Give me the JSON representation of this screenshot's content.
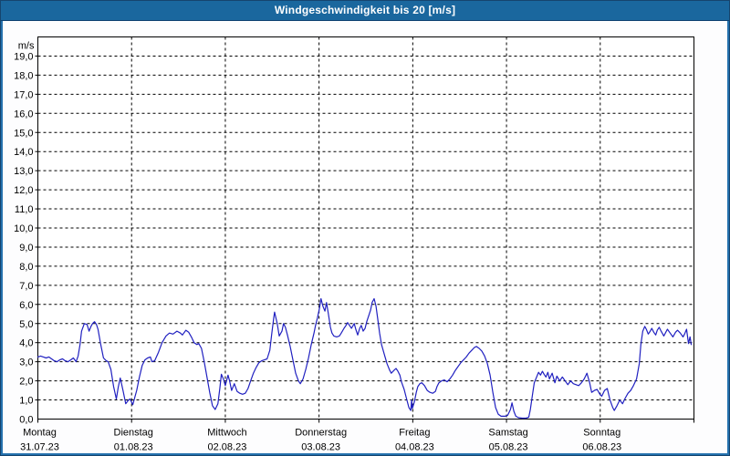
{
  "window": {
    "title": "Windgeschwindigkeit bis 20 [m/s]"
  },
  "colors": {
    "titlebar_bg": "#1a679e",
    "titlebar_text": "#ffffff",
    "frame": "#2471ad",
    "plot_bg": "#ffffff",
    "grid": "#000000",
    "axis": "#000000",
    "tick_text": "#000000",
    "line": "#2020c0"
  },
  "chart_data": {
    "type": "line",
    "title": "Windgeschwindigkeit bis 20 [m/s]",
    "y_unit_label": "m/s",
    "y_zero_label": "0,0",
    "ylim": [
      0,
      20
    ],
    "y_tick_step": 1,
    "y_tick_format": "comma_one_decimal",
    "grid": "dashed",
    "legend": "none",
    "x_axis": {
      "range_hours": [
        0,
        168
      ],
      "days": [
        {
          "name": "Montag",
          "date": "31.07.23"
        },
        {
          "name": "Dienstag",
          "date": "01.08.23"
        },
        {
          "name": "Mittwoch",
          "date": "02.08.23"
        },
        {
          "name": "Donnerstag",
          "date": "03.08.23"
        },
        {
          "name": "Freitag",
          "date": "04.08.23"
        },
        {
          "name": "Samstag",
          "date": "05.08.23"
        },
        {
          "name": "Sonntag",
          "date": "06.08.23"
        }
      ]
    },
    "series": [
      {
        "name": "Windgeschwindigkeit",
        "unit": "m/s",
        "color": "#2020c0",
        "points_hour_value": [
          [
            0,
            3.25
          ],
          [
            0.7,
            3.3
          ],
          [
            1.4,
            3.25
          ],
          [
            2.1,
            3.2
          ],
          [
            2.8,
            3.25
          ],
          [
            3.5,
            3.15
          ],
          [
            4.2,
            3.05
          ],
          [
            4.9,
            3.0
          ],
          [
            5.6,
            3.1
          ],
          [
            6.3,
            3.15
          ],
          [
            7.0,
            3.05
          ],
          [
            7.7,
            3.0
          ],
          [
            8.4,
            3.1
          ],
          [
            9.1,
            3.2
          ],
          [
            9.8,
            3.0
          ],
          [
            10.3,
            3.3
          ],
          [
            10.8,
            3.9
          ],
          [
            11.2,
            4.6
          ],
          [
            11.9,
            5.0
          ],
          [
            12.6,
            4.95
          ],
          [
            13.1,
            4.6
          ],
          [
            13.6,
            4.85
          ],
          [
            14.0,
            5.0
          ],
          [
            14.5,
            5.1
          ],
          [
            15.0,
            4.95
          ],
          [
            15.4,
            4.7
          ],
          [
            16.1,
            3.9
          ],
          [
            16.8,
            3.2
          ],
          [
            17.5,
            3.05
          ],
          [
            18.0,
            3.0
          ],
          [
            18.7,
            2.6
          ],
          [
            19.4,
            1.7
          ],
          [
            20.1,
            1.05
          ],
          [
            20.6,
            1.7
          ],
          [
            21.1,
            2.15
          ],
          [
            21.8,
            1.5
          ],
          [
            22.5,
            0.8
          ],
          [
            23.2,
            1.0
          ],
          [
            23.6,
            1.05
          ],
          [
            24.3,
            0.75
          ],
          [
            25.3,
            1.5
          ],
          [
            26.0,
            2.2
          ],
          [
            26.7,
            2.8
          ],
          [
            27.4,
            3.1
          ],
          [
            28.1,
            3.2
          ],
          [
            28.8,
            3.25
          ],
          [
            29.2,
            3.0
          ],
          [
            29.9,
            3.05
          ],
          [
            30.9,
            3.5
          ],
          [
            31.8,
            4.0
          ],
          [
            32.8,
            4.35
          ],
          [
            33.7,
            4.5
          ],
          [
            34.6,
            4.45
          ],
          [
            35.6,
            4.6
          ],
          [
            36.5,
            4.5
          ],
          [
            37.0,
            4.4
          ],
          [
            37.9,
            4.65
          ],
          [
            38.6,
            4.55
          ],
          [
            39.3,
            4.3
          ],
          [
            40.0,
            4.0
          ],
          [
            40.7,
            3.9
          ],
          [
            41.2,
            3.95
          ],
          [
            41.9,
            3.7
          ],
          [
            42.6,
            3.0
          ],
          [
            43.3,
            2.2
          ],
          [
            44.0,
            1.4
          ],
          [
            44.7,
            0.7
          ],
          [
            45.4,
            0.5
          ],
          [
            46.1,
            0.8
          ],
          [
            46.6,
            1.6
          ],
          [
            47.0,
            2.35
          ],
          [
            47.5,
            2.1
          ],
          [
            48.0,
            1.75
          ],
          [
            48.7,
            2.3
          ],
          [
            49.1,
            2.0
          ],
          [
            49.6,
            1.5
          ],
          [
            50.3,
            1.85
          ],
          [
            51.0,
            1.45
          ],
          [
            51.7,
            1.35
          ],
          [
            52.4,
            1.3
          ],
          [
            53.1,
            1.35
          ],
          [
            53.8,
            1.6
          ],
          [
            54.5,
            2.0
          ],
          [
            55.2,
            2.4
          ],
          [
            55.9,
            2.7
          ],
          [
            56.6,
            2.95
          ],
          [
            57.3,
            3.05
          ],
          [
            58.0,
            3.1
          ],
          [
            58.7,
            3.15
          ],
          [
            59.4,
            3.6
          ],
          [
            59.9,
            4.5
          ],
          [
            60.4,
            5.3
          ],
          [
            60.6,
            5.6
          ],
          [
            61.3,
            5.0
          ],
          [
            61.8,
            4.35
          ],
          [
            62.5,
            4.6
          ],
          [
            62.9,
            5.0
          ],
          [
            63.4,
            4.8
          ],
          [
            63.9,
            4.4
          ],
          [
            64.6,
            3.8
          ],
          [
            65.3,
            3.1
          ],
          [
            66.0,
            2.4
          ],
          [
            66.7,
            2.0
          ],
          [
            67.2,
            1.85
          ],
          [
            67.9,
            2.1
          ],
          [
            68.6,
            2.6
          ],
          [
            69.3,
            3.2
          ],
          [
            70.0,
            3.9
          ],
          [
            70.7,
            4.5
          ],
          [
            71.1,
            4.9
          ],
          [
            71.6,
            5.3
          ],
          [
            72.1,
            5.8
          ],
          [
            72.5,
            6.3
          ],
          [
            73.0,
            5.9
          ],
          [
            73.5,
            5.65
          ],
          [
            73.9,
            6.1
          ],
          [
            74.4,
            5.5
          ],
          [
            74.9,
            4.8
          ],
          [
            75.3,
            4.5
          ],
          [
            75.8,
            4.35
          ],
          [
            76.5,
            4.3
          ],
          [
            77.2,
            4.35
          ],
          [
            77.7,
            4.5
          ],
          [
            78.4,
            4.75
          ],
          [
            78.9,
            4.9
          ],
          [
            79.3,
            5.05
          ],
          [
            79.8,
            4.9
          ],
          [
            80.3,
            4.75
          ],
          [
            81.0,
            5.0
          ],
          [
            81.4,
            4.7
          ],
          [
            81.9,
            4.4
          ],
          [
            82.4,
            4.75
          ],
          [
            82.8,
            4.9
          ],
          [
            83.3,
            4.6
          ],
          [
            83.8,
            4.75
          ],
          [
            84.2,
            5.1
          ],
          [
            84.7,
            5.4
          ],
          [
            85.2,
            5.7
          ],
          [
            85.6,
            6.1
          ],
          [
            86.1,
            6.3
          ],
          [
            86.6,
            5.9
          ],
          [
            87.0,
            5.3
          ],
          [
            87.5,
            4.5
          ],
          [
            88.0,
            3.9
          ],
          [
            88.7,
            3.4
          ],
          [
            89.4,
            2.9
          ],
          [
            90.1,
            2.55
          ],
          [
            90.5,
            2.4
          ],
          [
            91.2,
            2.55
          ],
          [
            91.7,
            2.65
          ],
          [
            92.2,
            2.5
          ],
          [
            92.7,
            2.3
          ],
          [
            93.1,
            1.95
          ],
          [
            93.8,
            1.55
          ],
          [
            94.5,
            1.0
          ],
          [
            95.0,
            0.6
          ],
          [
            95.5,
            0.45
          ],
          [
            95.7,
            1.0
          ],
          [
            95.9,
            0.55
          ],
          [
            96.4,
            0.9
          ],
          [
            96.9,
            1.4
          ],
          [
            97.3,
            1.7
          ],
          [
            97.8,
            1.85
          ],
          [
            98.3,
            1.9
          ],
          [
            99.0,
            1.75
          ],
          [
            99.7,
            1.5
          ],
          [
            100.4,
            1.4
          ],
          [
            101.1,
            1.35
          ],
          [
            101.8,
            1.45
          ],
          [
            102.2,
            1.7
          ],
          [
            102.7,
            1.9
          ],
          [
            103.4,
            2.0
          ],
          [
            104.1,
            2.05
          ],
          [
            104.8,
            1.95
          ],
          [
            105.5,
            2.1
          ],
          [
            106.2,
            2.3
          ],
          [
            106.9,
            2.55
          ],
          [
            107.6,
            2.75
          ],
          [
            108.3,
            2.95
          ],
          [
            109.0,
            3.1
          ],
          [
            109.7,
            3.25
          ],
          [
            110.4,
            3.45
          ],
          [
            111.1,
            3.6
          ],
          [
            111.8,
            3.75
          ],
          [
            112.3,
            3.8
          ],
          [
            113.0,
            3.7
          ],
          [
            113.7,
            3.55
          ],
          [
            114.4,
            3.3
          ],
          [
            115.1,
            2.9
          ],
          [
            115.8,
            2.3
          ],
          [
            116.5,
            1.4
          ],
          [
            117.2,
            0.6
          ],
          [
            117.9,
            0.25
          ],
          [
            118.6,
            0.15
          ],
          [
            119.6,
            0.15
          ],
          [
            120.3,
            0.2
          ],
          [
            121.0,
            0.5
          ],
          [
            121.4,
            0.85
          ],
          [
            121.9,
            0.4
          ],
          [
            122.4,
            0.15
          ],
          [
            123.1,
            0.07
          ],
          [
            124.0,
            0.05
          ],
          [
            125.0,
            0.05
          ],
          [
            125.7,
            0.1
          ],
          [
            126.1,
            0.5
          ],
          [
            126.6,
            1.2
          ],
          [
            127.1,
            1.9
          ],
          [
            127.8,
            2.25
          ],
          [
            128.2,
            2.45
          ],
          [
            128.7,
            2.3
          ],
          [
            129.2,
            2.5
          ],
          [
            129.6,
            2.35
          ],
          [
            130.1,
            2.2
          ],
          [
            130.6,
            2.45
          ],
          [
            131.0,
            2.1
          ],
          [
            131.7,
            2.4
          ],
          [
            132.4,
            1.9
          ],
          [
            132.9,
            2.25
          ],
          [
            133.6,
            2.0
          ],
          [
            134.3,
            2.2
          ],
          [
            135.0,
            2.0
          ],
          [
            135.7,
            1.8
          ],
          [
            136.4,
            2.0
          ],
          [
            137.1,
            1.85
          ],
          [
            137.8,
            1.8
          ],
          [
            138.5,
            1.75
          ],
          [
            139.2,
            1.9
          ],
          [
            139.9,
            2.1
          ],
          [
            140.6,
            2.4
          ],
          [
            141.3,
            1.9
          ],
          [
            141.8,
            1.4
          ],
          [
            142.5,
            1.5
          ],
          [
            143.2,
            1.55
          ],
          [
            143.9,
            1.3
          ],
          [
            144.4,
            1.2
          ],
          [
            145.1,
            1.5
          ],
          [
            145.8,
            1.6
          ],
          [
            146.5,
            1.0
          ],
          [
            147.2,
            0.6
          ],
          [
            147.6,
            0.45
          ],
          [
            148.3,
            0.7
          ],
          [
            149.0,
            1.0
          ],
          [
            149.7,
            0.8
          ],
          [
            150.4,
            1.1
          ],
          [
            151.1,
            1.35
          ],
          [
            151.8,
            1.5
          ],
          [
            152.5,
            1.75
          ],
          [
            153.3,
            2.1
          ],
          [
            154.0,
            2.9
          ],
          [
            154.4,
            3.9
          ],
          [
            154.9,
            4.6
          ],
          [
            155.4,
            4.85
          ],
          [
            155.8,
            4.7
          ],
          [
            156.3,
            4.45
          ],
          [
            156.8,
            4.6
          ],
          [
            157.2,
            4.75
          ],
          [
            157.7,
            4.55
          ],
          [
            158.2,
            4.4
          ],
          [
            158.6,
            4.65
          ],
          [
            159.1,
            4.8
          ],
          [
            159.6,
            4.6
          ],
          [
            160.3,
            4.35
          ],
          [
            160.8,
            4.55
          ],
          [
            161.2,
            4.7
          ],
          [
            161.9,
            4.5
          ],
          [
            162.6,
            4.3
          ],
          [
            163.3,
            4.55
          ],
          [
            163.8,
            4.65
          ],
          [
            164.5,
            4.5
          ],
          [
            165.2,
            4.3
          ],
          [
            165.6,
            4.45
          ],
          [
            166.1,
            4.7
          ],
          [
            166.6,
            3.95
          ],
          [
            167.0,
            4.3
          ],
          [
            167.3,
            3.9
          ]
        ]
      }
    ]
  }
}
